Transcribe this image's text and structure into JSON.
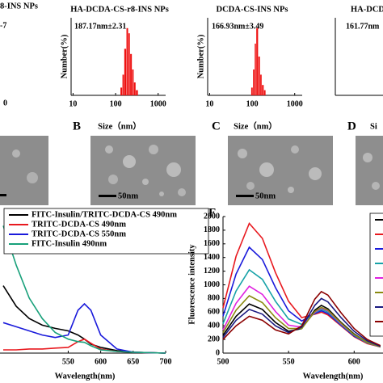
{
  "chart_data": [
    {
      "type": "histogram",
      "title": "HA-DCDA-CS-r8-INS NPs",
      "annotation": "187.17nm±2.31",
      "panel": "B",
      "xlabel": "Size（nm）",
      "ylabel": "Number(%)",
      "bins": [
        130,
        145,
        160,
        180,
        200,
        220,
        245,
        270,
        300,
        340
      ],
      "values": [
        3,
        8,
        18,
        26,
        24,
        16,
        10,
        5,
        2
      ],
      "color": "#ee1111",
      "xscale": "log",
      "xlim": [
        9,
        1500
      ],
      "xticks": [
        10,
        100,
        1000
      ],
      "ylim": [
        0,
        30
      ]
    },
    {
      "type": "histogram",
      "title": "DCDA-CS-INS NPs",
      "annotation": "166.93nm±3.49",
      "panel": "C",
      "xlabel": "Size（nm）",
      "ylabel": "Number(%)",
      "bins": [
        95,
        105,
        115,
        125,
        140,
        155,
        170,
        190,
        210
      ],
      "values": [
        3,
        10,
        20,
        26,
        15,
        8,
        4,
        2
      ],
      "color": "#ee1111",
      "xscale": "log",
      "xlim": [
        9,
        1500
      ],
      "xticks": [
        10,
        100,
        1000
      ],
      "ylim": [
        0,
        30
      ]
    },
    {
      "type": "line",
      "xlabel": "Wavelength(nm)",
      "x": [
        450,
        470,
        490,
        510,
        530,
        550,
        565,
        575,
        585,
        600,
        625,
        650,
        700
      ],
      "series": [
        {
          "name": "FITC-Insulin/TRITC-DCDA-CS 490nm",
          "color": "#000000",
          "values": [
            45.8,
            31.8,
            23.5,
            19.0,
            16.8,
            15.1,
            12.3,
            9.5,
            6.1,
            3.9,
            1.7,
            0.6,
            0
          ]
        },
        {
          "name": "TRITC-DCDA-CS 490nm",
          "color": "#e8191f",
          "values": [
            2.2,
            2.2,
            2.8,
            2.8,
            3.4,
            3.9,
            7.8,
            9.5,
            6.7,
            2.8,
            1.1,
            0.6,
            0
          ]
        },
        {
          "name": "TRITC-DCDA-CS 550nm",
          "color": "#1a1adb",
          "values": [
            20.7,
            17.9,
            15.1,
            12.3,
            10.6,
            12.3,
            29.1,
            33.5,
            29.1,
            12.3,
            2.8,
            0.6,
            0
          ]
        },
        {
          "name": "FITC-Insulin 490nm",
          "color": "#18a07a",
          "values": [
            86.6,
            59.8,
            37.4,
            23.5,
            14.0,
            9.5,
            7.8,
            7.3,
            5.0,
            2.2,
            1.1,
            0.6,
            0
          ]
        }
      ],
      "xlim": [
        445,
        700
      ],
      "xticks": [
        550,
        600,
        650,
        700
      ],
      "ylim": [
        0,
        100
      ],
      "legend": "upper-left"
    },
    {
      "type": "line",
      "panel": "F",
      "xlabel": "Wavelength(nm)",
      "ylabel": "Fluorescence intensity",
      "x": [
        500,
        510,
        520,
        530,
        540,
        550,
        560,
        570,
        575,
        580,
        590,
        600,
        610,
        620
      ],
      "series": [
        {
          "color": "#000000",
          "values": [
            260,
            540,
            720,
            640,
            450,
            320,
            360,
            630,
            700,
            650,
            450,
            280,
            160,
            90
          ]
        },
        {
          "color": "#e8191f",
          "values": [
            660,
            1420,
            1900,
            1680,
            1180,
            760,
            520,
            570,
            600,
            560,
            400,
            240,
            140,
            90
          ]
        },
        {
          "color": "#1a1adb",
          "values": [
            540,
            1160,
            1550,
            1370,
            960,
            620,
            470,
            580,
            620,
            580,
            410,
            250,
            150,
            90
          ]
        },
        {
          "color": "#17a2a8",
          "values": [
            430,
            910,
            1220,
            1080,
            760,
            500,
            420,
            590,
            640,
            600,
            420,
            260,
            150,
            90
          ]
        },
        {
          "color": "#e020e0",
          "values": [
            340,
            730,
            980,
            860,
            610,
            410,
            380,
            600,
            660,
            620,
            430,
            270,
            160,
            90
          ]
        },
        {
          "color": "#8a8a10",
          "values": [
            300,
            630,
            840,
            740,
            520,
            360,
            360,
            610,
            670,
            630,
            440,
            270,
            160,
            90
          ]
        },
        {
          "color": "#1a1a80",
          "values": [
            230,
            480,
            640,
            570,
            400,
            300,
            380,
            700,
            800,
            750,
            520,
            320,
            180,
            100
          ]
        },
        {
          "color": "#8b0000",
          "values": [
            200,
            400,
            540,
            480,
            340,
            280,
            400,
            790,
            900,
            850,
            590,
            360,
            200,
            110
          ]
        }
      ],
      "xlim": [
        500,
        622
      ],
      "xticks": [
        500,
        550,
        600
      ],
      "ylim": [
        0,
        2000
      ],
      "yticks": [
        0,
        200,
        400,
        600,
        800,
        1000,
        1200,
        1400,
        1600,
        1800,
        2000
      ],
      "legend": "upper-right"
    }
  ],
  "fragments": {
    "left_title": "8-INS NPs",
    "left_annotation": "-7",
    "left_tick": "0",
    "d_title": "HA-DCDA",
    "d_annotation": "161.77nm",
    "d_panel": "D",
    "d_xlabel": "Si"
  },
  "scale_bars": [
    "50nm",
    "50nm"
  ]
}
